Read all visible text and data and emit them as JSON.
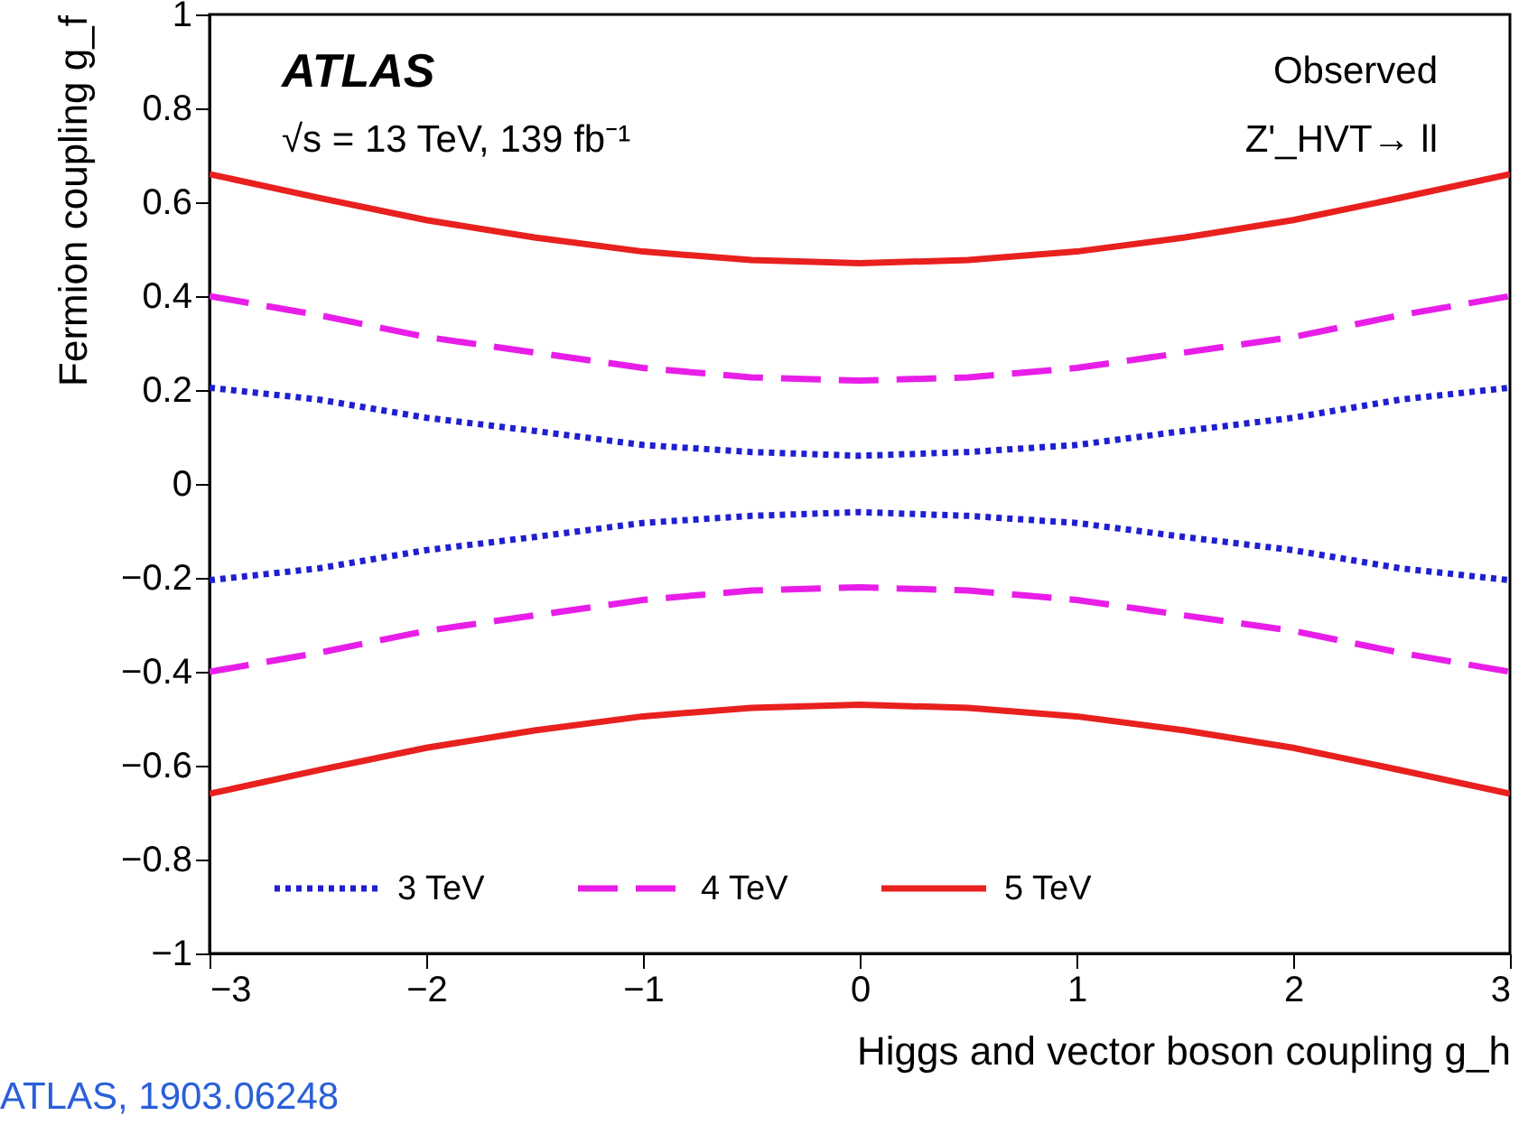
{
  "chart_data": {
    "type": "line",
    "xlabel": "Higgs and vector boson coupling g_h",
    "ylabel": "Fermion coupling g_f",
    "annotations": [
      "ATLAS",
      "√s = 13 TeV, 139 fb⁻¹",
      "Observed",
      "Z'_HVT→ ll",
      "ATLAS, 1903.06248"
    ],
    "x": [
      -3,
      -2.5,
      -2,
      -1.5,
      -1,
      -0.5,
      0,
      0.5,
      1,
      1.5,
      2,
      2.5,
      3
    ],
    "series": [
      {
        "name": "3 TeV",
        "color": "#1f1fd0",
        "line_style": "dotted",
        "values": [
          0.205,
          0.18,
          0.141,
          0.113,
          0.083,
          0.068,
          0.06,
          0.068,
          0.083,
          0.113,
          0.141,
          0.18,
          0.205
        ]
      },
      {
        "color": "#1f1fd0",
        "line_style": "dotted",
        "values": [
          -0.205,
          -0.18,
          -0.141,
          -0.113,
          -0.083,
          -0.068,
          -0.06,
          -0.068,
          -0.083,
          -0.113,
          -0.141,
          -0.18,
          -0.205
        ]
      },
      {
        "name": "4 TeV",
        "color": "#e81ee8",
        "line_style": "dashed",
        "values": [
          0.4,
          0.36,
          0.313,
          0.28,
          0.247,
          0.227,
          0.22,
          0.227,
          0.247,
          0.28,
          0.313,
          0.36,
          0.4
        ]
      },
      {
        "color": "#e81ee8",
        "line_style": "dashed",
        "values": [
          -0.4,
          -0.36,
          -0.313,
          -0.28,
          -0.247,
          -0.227,
          -0.22,
          -0.227,
          -0.247,
          -0.28,
          -0.313,
          -0.36,
          -0.4
        ]
      },
      {
        "name": "5 TeV",
        "color": "#e8201e",
        "line_style": "solid",
        "values": [
          0.66,
          0.61,
          0.562,
          0.525,
          0.495,
          0.477,
          0.47,
          0.477,
          0.495,
          0.525,
          0.562,
          0.61,
          0.66
        ]
      },
      {
        "color": "#e8201e",
        "line_style": "solid",
        "values": [
          -0.66,
          -0.61,
          -0.562,
          -0.525,
          -0.495,
          -0.477,
          -0.47,
          -0.477,
          -0.495,
          -0.525,
          -0.562,
          -0.61,
          -0.66
        ]
      }
    ],
    "xlim": [
      -3,
      3
    ],
    "xticks": [
      {
        "value": -3,
        "label": "−3"
      },
      {
        "value": -2,
        "label": "−2"
      },
      {
        "value": -1,
        "label": "−1"
      },
      0,
      1,
      2,
      3
    ],
    "ylim": [
      -1,
      1
    ],
    "yticks": [
      {
        "value": -1,
        "label": "−1"
      },
      {
        "value": -0.8,
        "label": "−0.8"
      },
      {
        "value": -0.6,
        "label": "−0.6"
      },
      {
        "value": -0.4,
        "label": "−0.4"
      },
      {
        "value": -0.2,
        "label": "−0.2"
      },
      0,
      0.2,
      0.4,
      0.6,
      0.8,
      1
    ],
    "grid": false,
    "legend": "bottom left"
  }
}
